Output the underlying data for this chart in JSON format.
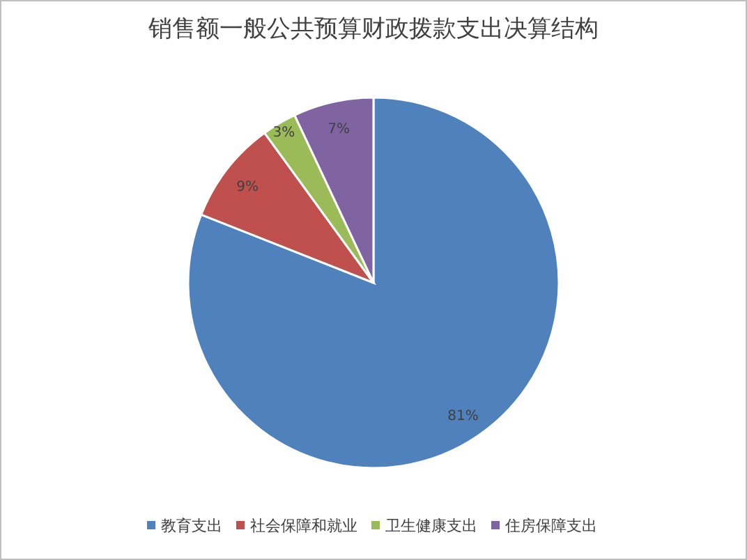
{
  "chart_data": {
    "type": "pie",
    "title": "销售额一般公共预算财政拨款支出决算结构",
    "categories": [
      "教育支出",
      "社会保障和就业",
      "卫生健康支出",
      "住房保障支出"
    ],
    "values": [
      81,
      9,
      3,
      7
    ],
    "colors": [
      "#4f81bd",
      "#c0504d",
      "#9bbb59",
      "#8064a2"
    ],
    "value_labels": [
      "81%",
      "9%",
      "3%",
      "7%"
    ],
    "legend": "bottom"
  }
}
